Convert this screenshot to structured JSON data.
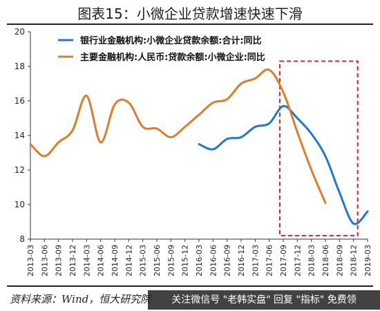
{
  "page": {
    "title": "图表15：小微企业贷款增速快速下滑",
    "source": "资料来源：Wind，恒大研究院",
    "watermark": "关注微信号 \"老韩实盘\" 回复 \"指标\" 免费领"
  },
  "colors": {
    "bank": "#1f78c8",
    "major": "#e07b28",
    "highlight": "#d62728"
  },
  "chart_data": {
    "type": "line",
    "title": "图表15：小微企业贷款增速快速下滑",
    "xlabel": "",
    "ylabel": "",
    "ylim": [
      8,
      20
    ],
    "yticks": [
      8,
      10,
      12,
      14,
      16,
      18,
      20
    ],
    "legend_position": "top-left",
    "grid": false,
    "categories": [
      "2013-03",
      "2013-06",
      "2013-09",
      "2013-12",
      "2014-03",
      "2014-06",
      "2014-09",
      "2014-12",
      "2015-03",
      "2015-06",
      "2015-09",
      "2015-12",
      "2016-03",
      "2016-06",
      "2016-09",
      "2016-12",
      "2017-03",
      "2017-06",
      "2017-09",
      "2017-12",
      "2018-03",
      "2018-06",
      "2018-09",
      "2018-12",
      "2019-03"
    ],
    "series": [
      {
        "name": "银行业金融机构:小微企业贷款余额:合计:同比",
        "color": "#1f78c8",
        "values": [
          null,
          null,
          null,
          null,
          null,
          null,
          null,
          null,
          null,
          null,
          null,
          null,
          13.5,
          13.2,
          13.8,
          13.9,
          14.5,
          14.7,
          15.7,
          15.0,
          14.1,
          12.8,
          10.7,
          8.9,
          9.6
        ]
      },
      {
        "name": "主要金融机构:人民币:贷款余额:小微企业:同比",
        "color": "#e07b28",
        "values": [
          13.5,
          12.8,
          13.6,
          14.3,
          16.3,
          13.6,
          15.8,
          15.9,
          14.5,
          14.4,
          13.9,
          14.5,
          15.2,
          15.9,
          16.1,
          17.0,
          17.3,
          17.8,
          16.5,
          14.2,
          12.0,
          10.1,
          null,
          null,
          null
        ]
      }
    ],
    "highlight_region": {
      "from_category": "2017-09",
      "to_category": "2018-12",
      "style": "dashed-box"
    }
  }
}
